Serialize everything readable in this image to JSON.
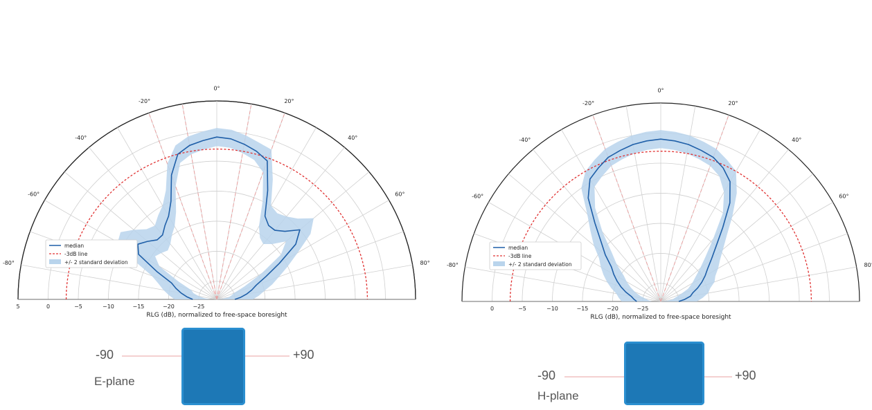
{
  "chart_data": [
    {
      "type": "polar-half",
      "xlabel": "RLG (dB), normalized to free-space boresight",
      "r_ticks": [
        5,
        0,
        -5,
        -10,
        -15,
        -20,
        -25
      ],
      "angle_ticks": [
        -80,
        -60,
        -40,
        -20,
        0,
        20,
        40,
        60,
        80
      ],
      "r_range": [
        -28,
        5
      ],
      "legend": [
        "median",
        "-3dB line",
        "+/- 2 standard deviation"
      ],
      "reference_line_db": -3,
      "dashed_angles": [
        -20,
        -10,
        10,
        20
      ],
      "angles": [
        -90,
        -85,
        -80,
        -75,
        -70,
        -65,
        -60,
        -55,
        -50,
        -45,
        -40,
        -35,
        -30,
        -25,
        -20,
        -15,
        -10,
        -5,
        0,
        5,
        10,
        15,
        20,
        25,
        30,
        35,
        40,
        45,
        50,
        55,
        60,
        65,
        70,
        75,
        80,
        85,
        90
      ],
      "median_db": [
        -24,
        -23,
        -22,
        -21,
        -20,
        -17,
        -13,
        -12,
        -13,
        -14,
        -14,
        -13,
        -12,
        -10,
        -6,
        -3,
        -2,
        -1.5,
        -1,
        -1.2,
        -1.8,
        -2.5,
        -3.5,
        -8,
        -12,
        -13,
        -13,
        -12,
        -10,
        -12,
        -16,
        -19,
        -21,
        -22,
        -23,
        -24,
        -25
      ],
      "std_halfwidth_db": [
        3,
        3,
        3,
        3,
        3.5,
        4,
        4,
        3.5,
        3,
        2.5,
        2,
        2,
        2,
        2,
        2,
        1.5,
        1.5,
        1.5,
        1.5,
        1.5,
        1.5,
        1.5,
        2,
        2,
        2,
        2.5,
        3,
        3,
        3,
        3,
        3.5,
        4,
        4,
        3.5,
        3,
        3,
        3
      ],
      "plane_label": "E-plane",
      "left_label": "-90",
      "right_label": "+90"
    },
    {
      "type": "polar-half",
      "xlabel": "RLG (dB), normalized to free-space boresight",
      "r_ticks": [
        0,
        -5,
        -10,
        -15,
        -20,
        -25
      ],
      "angle_ticks": [
        -80,
        -60,
        -40,
        -20,
        0,
        20,
        40,
        60,
        80
      ],
      "r_range": [
        -28,
        5
      ],
      "legend": [
        "median",
        "-3dB line",
        "+/- 2 standard deviation"
      ],
      "reference_line_db": -3,
      "dashed_angles": [
        -20,
        20
      ],
      "angles": [
        -90,
        -85,
        -80,
        -75,
        -70,
        -65,
        -60,
        -55,
        -50,
        -45,
        -40,
        -35,
        -30,
        -25,
        -20,
        -15,
        -10,
        -5,
        0,
        5,
        10,
        15,
        20,
        25,
        30,
        35,
        40,
        45,
        50,
        55,
        60,
        65,
        70,
        75,
        80,
        85,
        90
      ],
      "median_db": [
        -24,
        -23.5,
        -23,
        -22,
        -21,
        -20,
        -19,
        -18,
        -16,
        -14,
        -11,
        -7,
        -4.5,
        -3.5,
        -2.5,
        -2,
        -1.5,
        -1.2,
        -1,
        -1.2,
        -1.5,
        -2,
        -2.5,
        -3.5,
        -5,
        -8,
        -12,
        -15,
        -17,
        -18.5,
        -19.5,
        -20.5,
        -21.5,
        -22.5,
        -23,
        -24,
        -25
      ],
      "std_halfwidth_db": [
        2.5,
        2.5,
        2.5,
        2.5,
        2.5,
        2.5,
        2.5,
        2.5,
        2.5,
        2.5,
        2,
        2,
        1.5,
        1.5,
        1.5,
        1.5,
        1.5,
        1.5,
        1.5,
        1.5,
        1.5,
        1.5,
        1.5,
        1.5,
        2,
        2,
        2.5,
        2.5,
        2.5,
        2.5,
        2.5,
        2.5,
        3,
        3,
        3,
        3,
        3
      ],
      "plane_label": "H-plane",
      "left_label": "-90",
      "right_label": "+90"
    }
  ],
  "colors": {
    "median": "#1f5fa8",
    "band": "#b9d4ec",
    "ref": "#e03030",
    "grid": "#cfcfcf",
    "guide": "#e8a0a0",
    "board": "#1e7fc0"
  }
}
